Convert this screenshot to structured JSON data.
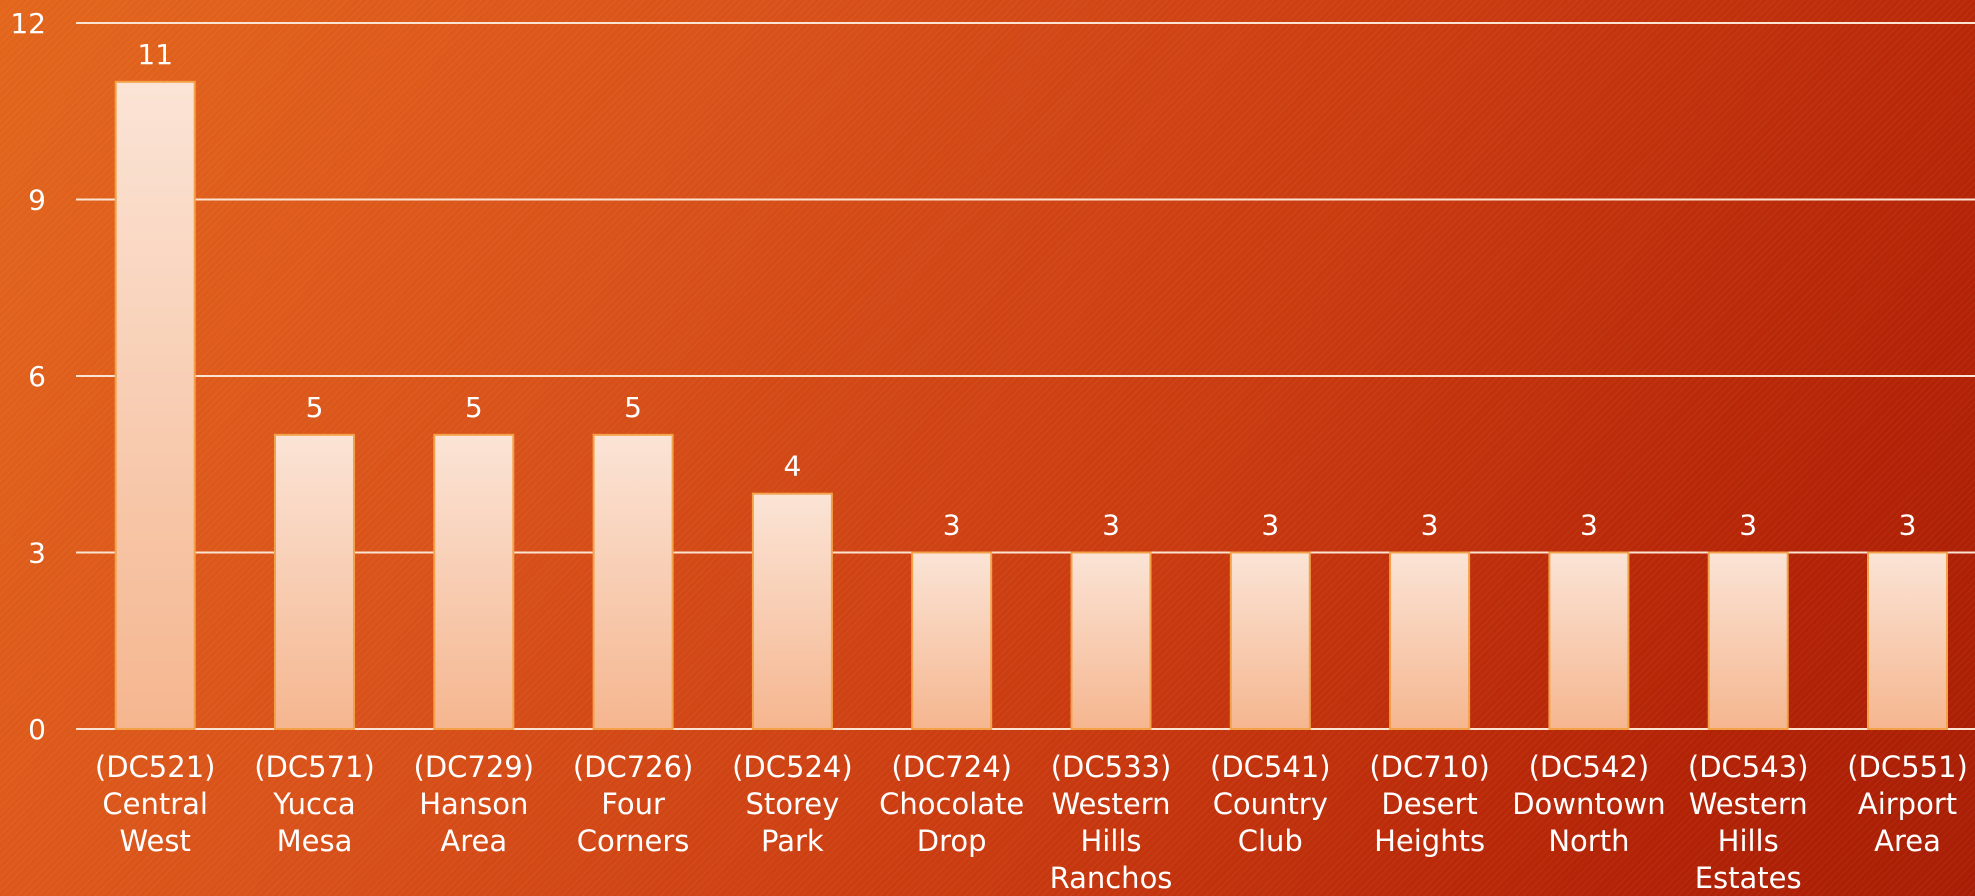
{
  "chart_data": {
    "type": "bar",
    "title": "",
    "xlabel": "",
    "ylabel": "",
    "categories": [
      [
        "(DC521)",
        "Central",
        "West"
      ],
      [
        "(DC571)",
        "Yucca",
        "Mesa"
      ],
      [
        "(DC729)",
        "Hanson",
        "Area"
      ],
      [
        "(DC726)",
        "Four",
        "Corners"
      ],
      [
        "(DC524)",
        "Storey",
        "Park"
      ],
      [
        "(DC724)",
        "Chocolate",
        "Drop"
      ],
      [
        "(DC533)",
        "Western",
        "Hills",
        "Ranchos"
      ],
      [
        "(DC541)",
        "Country",
        "Club"
      ],
      [
        "(DC710)",
        "Desert",
        "Heights"
      ],
      [
        "(DC542)",
        "Downtown",
        "North"
      ],
      [
        "(DC543)",
        "Western",
        "Hills",
        "Estates"
      ],
      [
        "(DC551)",
        "Airport",
        "Area"
      ]
    ],
    "values": [
      11,
      5,
      5,
      5,
      4,
      3,
      3,
      3,
      3,
      3,
      3,
      3
    ],
    "ylim": [
      0,
      12
    ],
    "yticks": [
      0,
      3,
      6,
      9,
      12
    ],
    "grid": true,
    "data_labels": true,
    "colors": {
      "bar_top": "#fbe4d6",
      "bar_bottom": "#f5b68f",
      "bar_border": "#f3a24a",
      "gridline": "#fbe3d2",
      "text": "#ffffff"
    }
  }
}
